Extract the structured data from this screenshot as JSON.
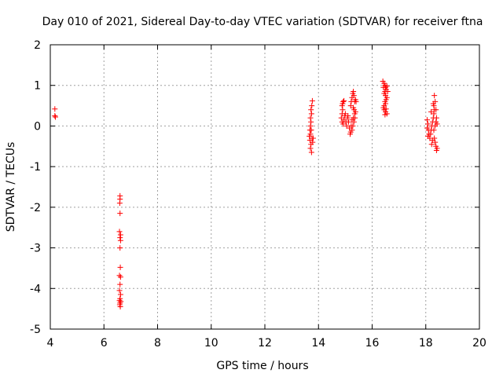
{
  "chart_data": {
    "type": "scatter",
    "title": "Day 010 of 2021, Sidereal Day-to-day VTEC variation (SDTVAR) for receiver ftna",
    "xlabel": "GPS time / hours",
    "ylabel": "SDTVAR / TECUs",
    "xlim": [
      4,
      20
    ],
    "ylim": [
      -5,
      2
    ],
    "xticks": [
      4,
      6,
      8,
      10,
      12,
      14,
      16,
      18,
      20
    ],
    "yticks": [
      -5,
      -4,
      -3,
      -2,
      -1,
      0,
      1,
      2
    ],
    "xtick_labels": [
      "4",
      "6",
      "8",
      "10",
      "12",
      "14",
      "16",
      "18",
      "20"
    ],
    "ytick_labels": [
      "-5",
      "-4",
      "-3",
      "-2",
      "-1",
      "0",
      "1",
      "2"
    ],
    "grid": true,
    "marker": "plus",
    "marker_color": "#ff0000",
    "series": [
      {
        "name": "SDTVAR",
        "points": [
          [
            4.17,
            0.42
          ],
          [
            4.17,
            0.25
          ],
          [
            4.19,
            0.22
          ],
          [
            6.6,
            -1.72
          ],
          [
            6.6,
            -1.8
          ],
          [
            6.59,
            -1.9
          ],
          [
            6.6,
            -2.15
          ],
          [
            6.58,
            -2.6
          ],
          [
            6.62,
            -2.68
          ],
          [
            6.6,
            -2.75
          ],
          [
            6.62,
            -2.82
          ],
          [
            6.6,
            -3.0
          ],
          [
            6.61,
            -3.48
          ],
          [
            6.58,
            -3.68
          ],
          [
            6.62,
            -3.72
          ],
          [
            6.6,
            -3.9
          ],
          [
            6.58,
            -4.05
          ],
          [
            6.62,
            -4.15
          ],
          [
            6.6,
            -4.25
          ],
          [
            6.58,
            -4.3
          ],
          [
            6.63,
            -4.32
          ],
          [
            6.6,
            -4.36
          ],
          [
            6.59,
            -4.4
          ],
          [
            6.61,
            -4.45
          ],
          [
            13.68,
            -0.1
          ],
          [
            13.7,
            0.0
          ],
          [
            13.72,
            0.1
          ],
          [
            13.7,
            0.2
          ],
          [
            13.74,
            0.3
          ],
          [
            13.72,
            0.4
          ],
          [
            13.75,
            0.5
          ],
          [
            13.77,
            0.62
          ],
          [
            13.7,
            -0.2
          ],
          [
            13.68,
            -0.35
          ],
          [
            13.72,
            -0.45
          ],
          [
            13.7,
            -0.55
          ],
          [
            13.74,
            -0.65
          ],
          [
            13.76,
            -0.3
          ],
          [
            13.78,
            -0.4
          ],
          [
            13.73,
            -0.1
          ],
          [
            13.66,
            -0.25
          ],
          [
            13.8,
            -0.3
          ],
          [
            14.88,
            0.5
          ],
          [
            14.9,
            0.55
          ],
          [
            14.92,
            0.6
          ],
          [
            14.95,
            0.62
          ],
          [
            14.9,
            0.4
          ],
          [
            14.88,
            0.3
          ],
          [
            14.85,
            0.2
          ],
          [
            14.88,
            0.1
          ],
          [
            14.92,
            0.05
          ],
          [
            14.95,
            0.15
          ],
          [
            14.98,
            0.25
          ],
          [
            15.0,
            0.3
          ],
          [
            15.02,
            0.1
          ],
          [
            15.05,
            0.0
          ],
          [
            15.08,
            0.2
          ],
          [
            15.1,
            0.25
          ],
          [
            15.12,
            0.1
          ],
          [
            15.15,
            -0.05
          ],
          [
            15.18,
            -0.2
          ],
          [
            15.2,
            -0.15
          ],
          [
            15.22,
            0.0
          ],
          [
            15.25,
            0.15
          ],
          [
            15.2,
            0.5
          ],
          [
            15.22,
            0.6
          ],
          [
            15.25,
            0.7
          ],
          [
            15.28,
            0.8
          ],
          [
            15.3,
            0.85
          ],
          [
            15.32,
            0.75
          ],
          [
            15.35,
            0.6
          ],
          [
            15.3,
            0.45
          ],
          [
            15.33,
            0.4
          ],
          [
            15.35,
            0.3
          ],
          [
            15.3,
            0.2
          ],
          [
            15.32,
            0.1
          ],
          [
            15.28,
            0.0
          ],
          [
            15.38,
            0.65
          ],
          [
            15.4,
            0.6
          ],
          [
            15.38,
            0.35
          ],
          [
            15.36,
            0.2
          ],
          [
            15.25,
            -0.1
          ],
          [
            16.4,
            1.1
          ],
          [
            16.45,
            1.05
          ],
          [
            16.48,
            1.0
          ],
          [
            16.5,
            0.95
          ],
          [
            16.55,
            0.98
          ],
          [
            16.52,
            0.9
          ],
          [
            16.48,
            0.85
          ],
          [
            16.45,
            0.8
          ],
          [
            16.5,
            0.75
          ],
          [
            16.55,
            0.7
          ],
          [
            16.52,
            0.65
          ],
          [
            16.48,
            0.6
          ],
          [
            16.5,
            0.55
          ],
          [
            16.45,
            0.5
          ],
          [
            16.42,
            0.45
          ],
          [
            16.45,
            0.4
          ],
          [
            16.5,
            0.35
          ],
          [
            16.55,
            0.3
          ],
          [
            16.48,
            0.28
          ],
          [
            16.52,
            0.42
          ],
          [
            16.42,
            0.95
          ],
          [
            16.58,
            0.85
          ],
          [
            18.05,
            0.15
          ],
          [
            18.08,
            0.05
          ],
          [
            18.05,
            -0.05
          ],
          [
            18.1,
            -0.1
          ],
          [
            18.12,
            -0.2
          ],
          [
            18.08,
            -0.25
          ],
          [
            18.15,
            -0.3
          ],
          [
            18.18,
            -0.2
          ],
          [
            18.2,
            -0.1
          ],
          [
            18.22,
            0.0
          ],
          [
            18.25,
            0.1
          ],
          [
            18.28,
            0.2
          ],
          [
            18.3,
            0.3
          ],
          [
            18.32,
            0.4
          ],
          [
            18.3,
            0.5
          ],
          [
            18.28,
            0.55
          ],
          [
            18.32,
            0.75
          ],
          [
            18.35,
            0.6
          ],
          [
            18.38,
            0.4
          ],
          [
            18.4,
            0.2
          ],
          [
            18.38,
            0.1
          ],
          [
            18.35,
            0.0
          ],
          [
            18.3,
            -0.1
          ],
          [
            18.32,
            -0.3
          ],
          [
            18.35,
            -0.4
          ],
          [
            18.38,
            -0.5
          ],
          [
            18.4,
            -0.6
          ],
          [
            18.42,
            -0.55
          ],
          [
            18.25,
            -0.35
          ],
          [
            18.22,
            -0.45
          ],
          [
            18.2,
            0.35
          ],
          [
            18.42,
            0.05
          ]
        ]
      }
    ]
  }
}
